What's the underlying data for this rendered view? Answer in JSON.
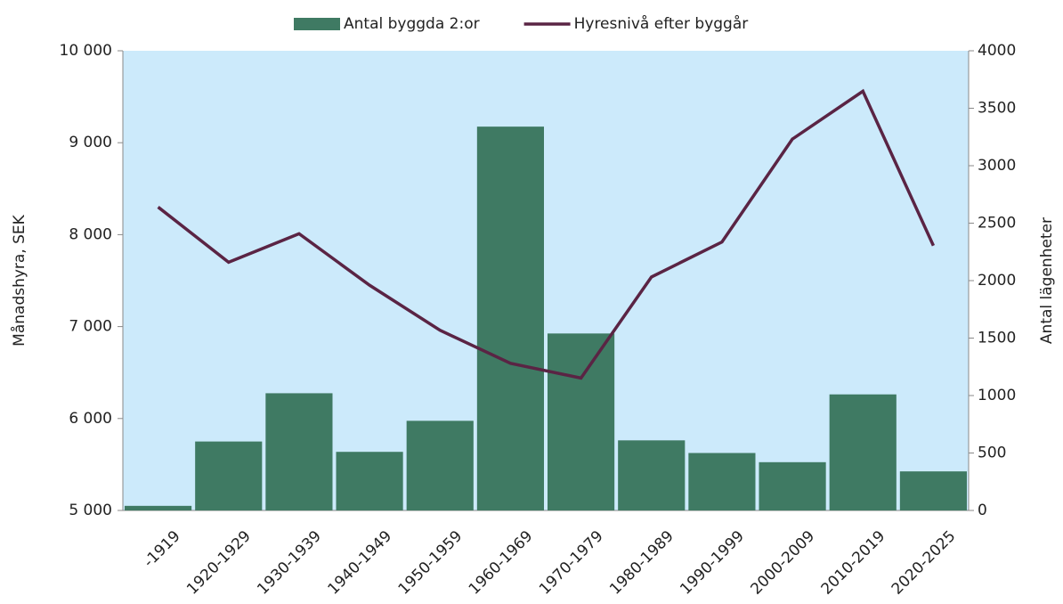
{
  "chart_data": {
    "type": "bar",
    "categories": [
      "-1919",
      "1920-1929",
      "1930-1939",
      "1940-1949",
      "1950-1959",
      "1960-1969",
      "1970-1979",
      "1980-1989",
      "1990-1999",
      "2000-2009",
      "2010-2019",
      "2020-2025"
    ],
    "series": [
      {
        "name": "Antal byggda 2:or",
        "type": "bar",
        "axis": "y2",
        "color": "#3f7a63",
        "values": [
          40,
          600,
          1020,
          510,
          780,
          3340,
          1540,
          610,
          500,
          420,
          1010,
          340
        ]
      },
      {
        "name": "Hyresnivå efter byggår",
        "type": "line",
        "axis": "y",
        "color": "#5a2444",
        "values": [
          8300,
          7700,
          8010,
          7450,
          6960,
          6600,
          6440,
          7540,
          7920,
          9040,
          9560,
          7880
        ]
      }
    ],
    "ylabel": "Månadshyra, SEK",
    "y2label": "Antal lägenheter",
    "ylim": [
      5000,
      10000
    ],
    "yticks": [
      {
        "value": 5000,
        "label": "5 000"
      },
      {
        "value": 6000,
        "label": "6 000"
      },
      {
        "value": 7000,
        "label": "7 000"
      },
      {
        "value": 8000,
        "label": "8 000"
      },
      {
        "value": 9000,
        "label": "9 000"
      },
      {
        "value": 10000,
        "label": "10 000"
      }
    ],
    "y2lim": [
      0,
      4000
    ],
    "y2ticks": [
      0,
      500,
      1000,
      1500,
      2000,
      2500,
      3000,
      3500,
      4000
    ],
    "plot_background": "#cceafb",
    "legend": "top"
  }
}
